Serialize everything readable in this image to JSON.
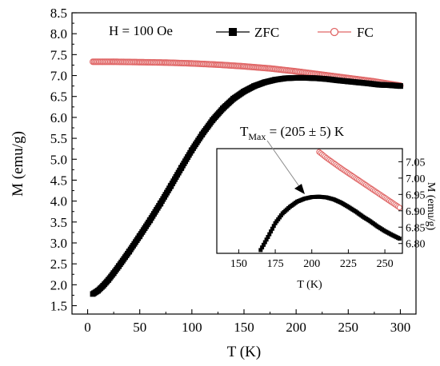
{
  "chart_data": {
    "type": "scatter",
    "main": {
      "xlabel": "T (K)",
      "ylabel": "M (emu/g)",
      "xlim": [
        -15,
        315
      ],
      "ylim": [
        1.3,
        8.5
      ],
      "xticks": [
        0,
        50,
        100,
        150,
        200,
        250,
        300
      ],
      "xtick_labels": [
        "0",
        "50",
        "100",
        "150",
        "200",
        "250",
        "300"
      ],
      "yticks": [
        1.5,
        2.0,
        2.5,
        3.0,
        3.5,
        4.0,
        4.5,
        5.0,
        5.5,
        6.0,
        6.5,
        7.0,
        7.5,
        8.0,
        8.5
      ],
      "ytick_labels": [
        "1.5",
        "2.0",
        "2.5",
        "3.0",
        "3.5",
        "4.0",
        "4.5",
        "5.0",
        "5.5",
        "6.0",
        "6.5",
        "7.0",
        "7.5",
        "8.0",
        "8.5"
      ],
      "grid": false,
      "annotation": "H = 100 Oe"
    },
    "legend": {
      "placement": "top",
      "entries": [
        "ZFC",
        "FC"
      ]
    },
    "series": [
      {
        "name": "ZFC",
        "color": "#000000",
        "marker": "filled-square",
        "x": [
          5,
          10,
          15,
          20,
          25,
          30,
          40,
          50,
          60,
          70,
          80,
          90,
          100,
          110,
          120,
          130,
          140,
          150,
          160,
          170,
          180,
          190,
          200,
          205,
          210,
          220,
          230,
          240,
          250,
          260,
          270,
          280,
          290,
          300
        ],
        "y": [
          1.78,
          1.86,
          1.98,
          2.12,
          2.28,
          2.45,
          2.8,
          3.17,
          3.55,
          3.95,
          4.37,
          4.8,
          5.22,
          5.6,
          5.94,
          6.22,
          6.45,
          6.62,
          6.75,
          6.84,
          6.9,
          6.935,
          6.945,
          6.946,
          6.944,
          6.935,
          6.915,
          6.885,
          6.86,
          6.835,
          6.81,
          6.78,
          6.77,
          6.75
        ]
      },
      {
        "name": "FC",
        "color": "#e06666",
        "marker": "open-circle",
        "x": [
          5,
          25,
          50,
          75,
          100,
          125,
          150,
          175,
          200,
          225,
          250,
          275,
          300
        ],
        "y": [
          7.33,
          7.33,
          7.32,
          7.31,
          7.29,
          7.26,
          7.22,
          7.17,
          7.1,
          7.02,
          6.94,
          6.86,
          6.76
        ]
      }
    ],
    "inset": {
      "xlabel": "T (K)",
      "ylabel": "M (emu/g)",
      "xlim": [
        135,
        262
      ],
      "ylim": [
        6.77,
        7.09
      ],
      "xticks": [
        150,
        175,
        200,
        225,
        250
      ],
      "xtick_labels": [
        "150",
        "175",
        "200",
        "225",
        "250"
      ],
      "yticks": [
        6.8,
        6.85,
        6.9,
        6.95,
        7.0,
        7.05
      ],
      "ytick_labels": [
        "6.80",
        "6.85",
        "6.90",
        "6.95",
        "7.00",
        "7.05"
      ],
      "series": [
        {
          "name": "ZFC",
          "color": "#000000",
          "marker": "filled-square",
          "x": [
            165,
            170,
            175,
            180,
            185,
            190,
            195,
            200,
            205,
            210,
            215,
            220,
            225,
            230,
            235,
            240,
            245,
            250,
            255,
            260
          ],
          "y": [
            6.78,
            6.82,
            6.862,
            6.892,
            6.912,
            6.928,
            6.937,
            6.942,
            6.943,
            6.941,
            6.935,
            6.925,
            6.912,
            6.898,
            6.882,
            6.868,
            6.852,
            6.838,
            6.826,
            6.815
          ]
        },
        {
          "name": "FC",
          "color": "#e06666",
          "marker": "open-circle",
          "x": [
            205,
            210,
            215,
            220,
            225,
            230,
            235,
            240,
            245,
            250,
            255,
            260
          ],
          "y": [
            7.08,
            7.062,
            7.046,
            7.03,
            7.015,
            7.0,
            6.985,
            6.97,
            6.955,
            6.94,
            6.925,
            6.91
          ]
        }
      ]
    },
    "annotations": [
      {
        "text": "T",
        "sub": "Max",
        "rest": " = (205 ± 5) K",
        "target_x": 205,
        "target_y": 6.945
      }
    ]
  }
}
